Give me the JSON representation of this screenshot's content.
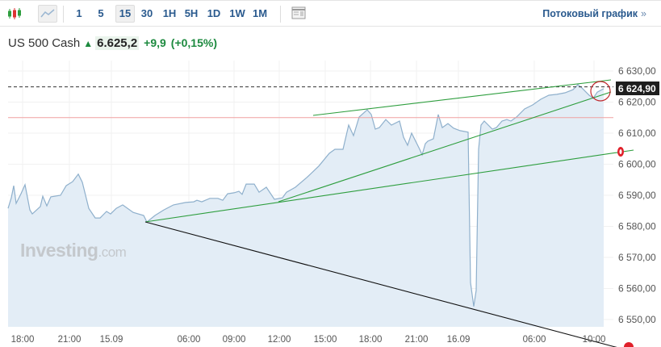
{
  "toolbar": {
    "chart_type_icons": [
      "candlestick-icon",
      "area-chart-icon"
    ],
    "intervals": [
      "1",
      "5",
      "15",
      "30",
      "1H",
      "5H",
      "1D",
      "1W",
      "1M"
    ],
    "active_interval": "15",
    "layout_icon": "table-layout-icon",
    "streaming_link": "Потоковый график",
    "streaming_chevron": "»"
  },
  "quote": {
    "name": "US 500 Cash",
    "price": "6.625,2",
    "change": "+9,9",
    "change_pct": "(+0,15%)",
    "direction": "up",
    "up_color": "#1d8a3f"
  },
  "watermark": "Investing.com",
  "chart_data": {
    "type": "area",
    "ylim": [
      6545,
      6632
    ],
    "y_ticks": [
      "6 630,00",
      "6 620,00",
      "6 610,00",
      "6 600,00",
      "6 590,00",
      "6 580,00",
      "6 570,00",
      "6 560,00",
      "6 550,00"
    ],
    "x_ticks": [
      "18:00",
      "21:00",
      "15.09",
      "06:00",
      "09:00",
      "12:00",
      "15:00",
      "18:00",
      "21:00",
      "16.09",
      "06:00",
      "10:00"
    ],
    "current_price_label": "6 624,90",
    "reference_level": 6615,
    "grid": true,
    "line_color": "#8fb0cc",
    "fill_color": "#e3edf6",
    "trendline_color": "#2e9e3e",
    "values": [
      6585.8,
      6589.2,
      6593.1,
      6587.4,
      6590.5,
      6593.4,
      6585.3,
      6584.0,
      6586.4,
      6589.7,
      6586.6,
      6589.5,
      6590.0,
      6593.1,
      6594.4,
      6596.8,
      6594.2,
      6585.8,
      6582.7,
      6582.7,
      6584.8,
      6584.0,
      6585.8,
      6586.9,
      6584.5,
      6583.5,
      6581.4,
      6583.5,
      6585.3,
      6586.9,
      6587.7,
      6587.9,
      6588.4,
      6587.9,
      6589.0,
      6589.0,
      6588.4,
      6590.5,
      6590.8,
      6591.3,
      6590.3,
      6593.6,
      6593.6,
      6591.0,
      6592.6,
      6588.7,
      6589.2,
      6591.0,
      6592.6,
      6595.7,
      6599.4,
      6603.5,
      6604.8,
      6604.8,
      6612.6,
      6609.2,
      6615.2,
      6617.5,
      6616.0,
      6611.3,
      6611.8,
      6614.4,
      6612.6,
      6613.9,
      6608.7,
      6606.1,
      6610.0,
      6604.8,
      6603.0,
      6606.6,
      6607.4,
      6608.2,
      6616.0,
      6611.8,
      6613.1,
      6611.6,
      6610.8,
      6610.3,
      6561.9,
      6554.2,
      6559.4,
      6604.8,
      6612.6,
      6613.9,
      6611.3,
      6611.8,
      6613.9,
      6614.4,
      6613.9,
      6615.2,
      6617.8,
      6619.1,
      6620.9,
      6622.2,
      6622.5,
      6623.0,
      6624.0,
      6625.6,
      6624.8,
      6622.2,
      6621.2,
      6623.2,
      6624.3
    ]
  }
}
